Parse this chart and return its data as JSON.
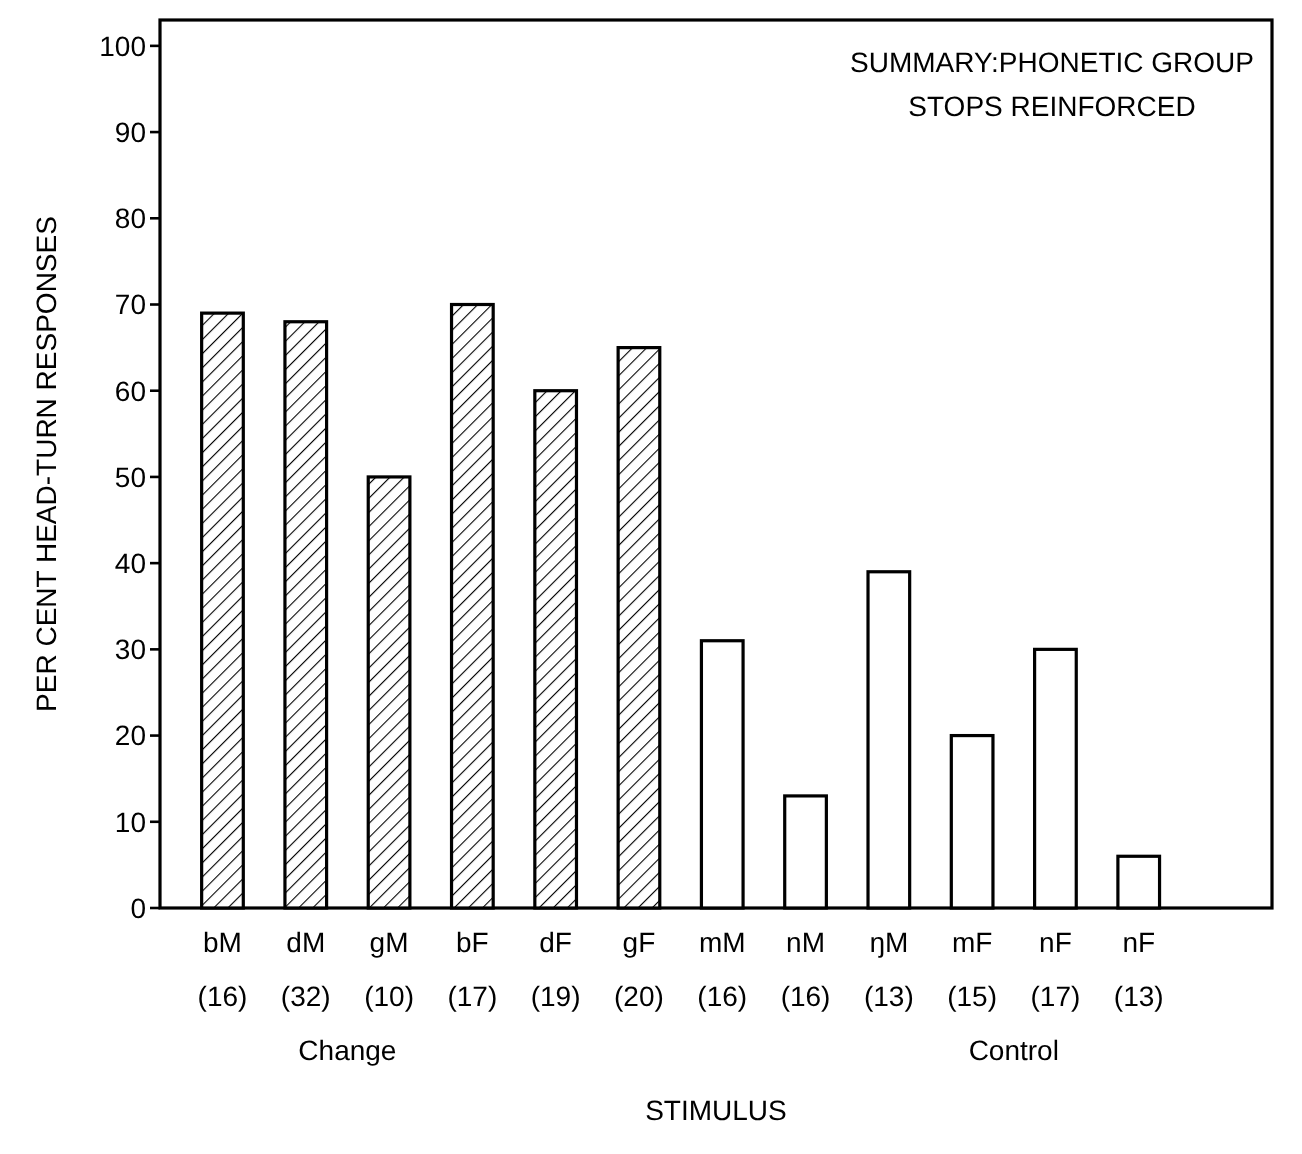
{
  "chart_data": {
    "type": "bar",
    "title": "SUMMARY:PHONETIC GROUP\nSTOPS REINFORCED",
    "xlabel": "STIMULUS",
    "ylabel": "PER CENT HEAD-TURN RESPONSES",
    "categories": [
      "bM\n(16)",
      "dM\n(32)",
      "gM\n(10)",
      "bF\n(17)",
      "dF\n(19)",
      "gF\n(20)",
      "mM\n(16)",
      "nM\n(16)",
      "ŋM\n(13)",
      "mF\n(15)",
      "nF\n(17)",
      "nF\n(13)"
    ],
    "values": [
      69,
      68,
      50,
      70,
      60,
      65,
      31,
      13,
      39,
      20,
      30,
      6
    ],
    "colors": [
      "#000000",
      "#000000",
      "#000000",
      "#000000",
      "#000000",
      "#000000",
      "#ffffff",
      "#ffffff",
      "#ffffff",
      "#ffffff",
      "#ffffff",
      "#ffffff"
    ],
    "annotations": [
      "Change",
      "Control"
    ],
    "ylim": [
      0,
      103
    ],
    "yticks": [
      0,
      10,
      20,
      30,
      40,
      50,
      60,
      70,
      80,
      90,
      100
    ],
    "grid": false
  }
}
